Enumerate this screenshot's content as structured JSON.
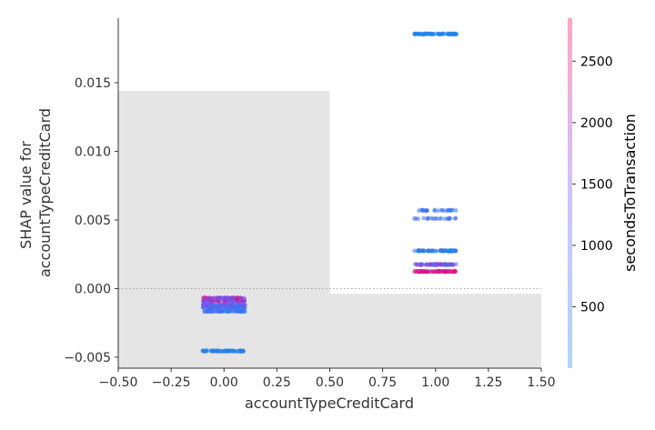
{
  "chart_data": {
    "type": "scatter",
    "title": "",
    "xlabel": "accountTypeCreditCard",
    "ylabel": [
      "SHAP value for",
      "accountTypeCreditCard"
    ],
    "xlim": [
      -0.5,
      1.5
    ],
    "ylim": [
      -0.0058,
      0.0197
    ],
    "xticks": [
      -0.5,
      -0.25,
      0.0,
      0.25,
      0.5,
      0.75,
      1.0,
      1.25,
      1.5
    ],
    "xtick_labels": [
      "−0.50",
      "−0.25",
      "0.00",
      "0.25",
      "0.50",
      "0.75",
      "1.00",
      "1.25",
      "1.50"
    ],
    "yticks": [
      -0.005,
      0.0,
      0.005,
      0.01,
      0.015
    ],
    "ytick_labels": [
      "−0.005",
      "0.000",
      "0.005",
      "0.010",
      "0.015"
    ],
    "zero_line": 0.0,
    "histogram_background": [
      {
        "x0": -0.5,
        "x1": 0.5,
        "y_top": 0.0144
      },
      {
        "x0": 0.5,
        "x1": 1.5,
        "y_top": -0.00038
      }
    ],
    "colorbar": {
      "label": "secondsToTransaction",
      "range": [
        0,
        2850
      ],
      "ticks": [
        500,
        1000,
        1500,
        2000,
        2500
      ],
      "tick_labels": [
        "500",
        "1000",
        "1500",
        "2000",
        "2500"
      ],
      "colors": [
        "#1e88e5",
        "#7c52ff",
        "#ff0052"
      ]
    },
    "series": [
      {
        "x_center": 0.0,
        "x_spread": 0.1,
        "y": -0.00455,
        "density": 1.0,
        "c_low": 0,
        "c_high": 300
      },
      {
        "x_center": 0.0,
        "x_spread": 0.1,
        "y": -0.00165,
        "density": 0.9,
        "c_low": 100,
        "c_high": 900
      },
      {
        "x_center": 0.0,
        "x_spread": 0.1,
        "y": -0.0014,
        "density": 1.0,
        "c_low": 0,
        "c_high": 1400
      },
      {
        "x_center": 0.0,
        "x_spread": 0.1,
        "y": -0.0012,
        "density": 1.0,
        "c_low": 0,
        "c_high": 2000
      },
      {
        "x_center": 0.0,
        "x_spread": 0.1,
        "y": -0.0009,
        "density": 1.0,
        "c_low": 500,
        "c_high": 2800
      },
      {
        "x_center": 0.0,
        "x_spread": 0.1,
        "y": -0.0007,
        "density": 1.0,
        "c_low": 800,
        "c_high": 2800
      },
      {
        "x_center": 1.0,
        "x_spread": 0.1,
        "y": 0.01855,
        "density": 1.0,
        "c_low": 0,
        "c_high": 250
      },
      {
        "x_center": 1.0,
        "x_spread": 0.1,
        "y": 0.0057,
        "density": 0.35,
        "c_low": 200,
        "c_high": 800
      },
      {
        "x_center": 1.0,
        "x_spread": 0.1,
        "y": 0.0051,
        "density": 0.3,
        "c_low": 300,
        "c_high": 900
      },
      {
        "x_center": 1.0,
        "x_spread": 0.1,
        "y": 0.00275,
        "density": 1.0,
        "c_low": 0,
        "c_high": 400
      },
      {
        "x_center": 1.0,
        "x_spread": 0.1,
        "y": 0.00175,
        "density": 1.0,
        "c_low": 600,
        "c_high": 2200
      },
      {
        "x_center": 1.0,
        "x_spread": 0.1,
        "y": 0.00125,
        "density": 1.0,
        "c_low": 1800,
        "c_high": 2800
      }
    ]
  }
}
